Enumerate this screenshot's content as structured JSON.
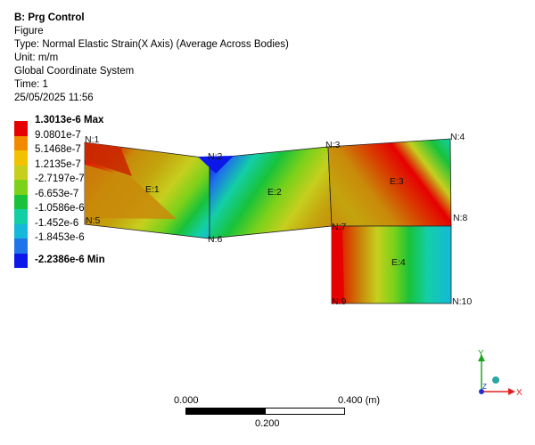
{
  "info": {
    "title": "B: Prg Control",
    "line1": "Figure",
    "line2": "Type: Normal Elastic Strain(X Axis) (Average Across Bodies)",
    "line3": "Unit: m/m",
    "line4": "Global Coordinate System",
    "line5": "Time: 1",
    "line6": "25/05/2025 11:56"
  },
  "legend": {
    "items": [
      {
        "label": "1.3013e-6 Max",
        "color": "#e60000",
        "bold": true
      },
      {
        "label": "9.0801e-7",
        "color": "#f28a00"
      },
      {
        "label": "5.1468e-7",
        "color": "#f2c200"
      },
      {
        "label": "1.2135e-7",
        "color": "#c6cf1e"
      },
      {
        "label": "-2.7197e-7",
        "color": "#7cd11a"
      },
      {
        "label": "-6.653e-7",
        "color": "#18c23a"
      },
      {
        "label": "-1.0586e-6",
        "color": "#13cfa6"
      },
      {
        "label": "-1.452e-6",
        "color": "#15b8d8"
      },
      {
        "label": "-1.8453e-6",
        "color": "#1e74e8"
      },
      {
        "label": "-2.2386e-6 Min",
        "color": "#0b18e8",
        "bold": true
      }
    ]
  },
  "nodes": {
    "n1": "N:1",
    "n2": "N:2",
    "n3": "N:3",
    "n4": "N:4",
    "n5": "N:5",
    "n6": "N:6",
    "n7": "N:7",
    "n8": "N:8",
    "n9": "N:9",
    "n10": "N:10"
  },
  "elements": {
    "e1": "E:1",
    "e2": "E:2",
    "e3": "E:3",
    "e4": "E:4"
  },
  "scale": {
    "left": "0.000",
    "right": "0.400 (m)",
    "mid": "0.200"
  },
  "axes": {
    "y": "Y",
    "x": "X",
    "z": "Z"
  }
}
